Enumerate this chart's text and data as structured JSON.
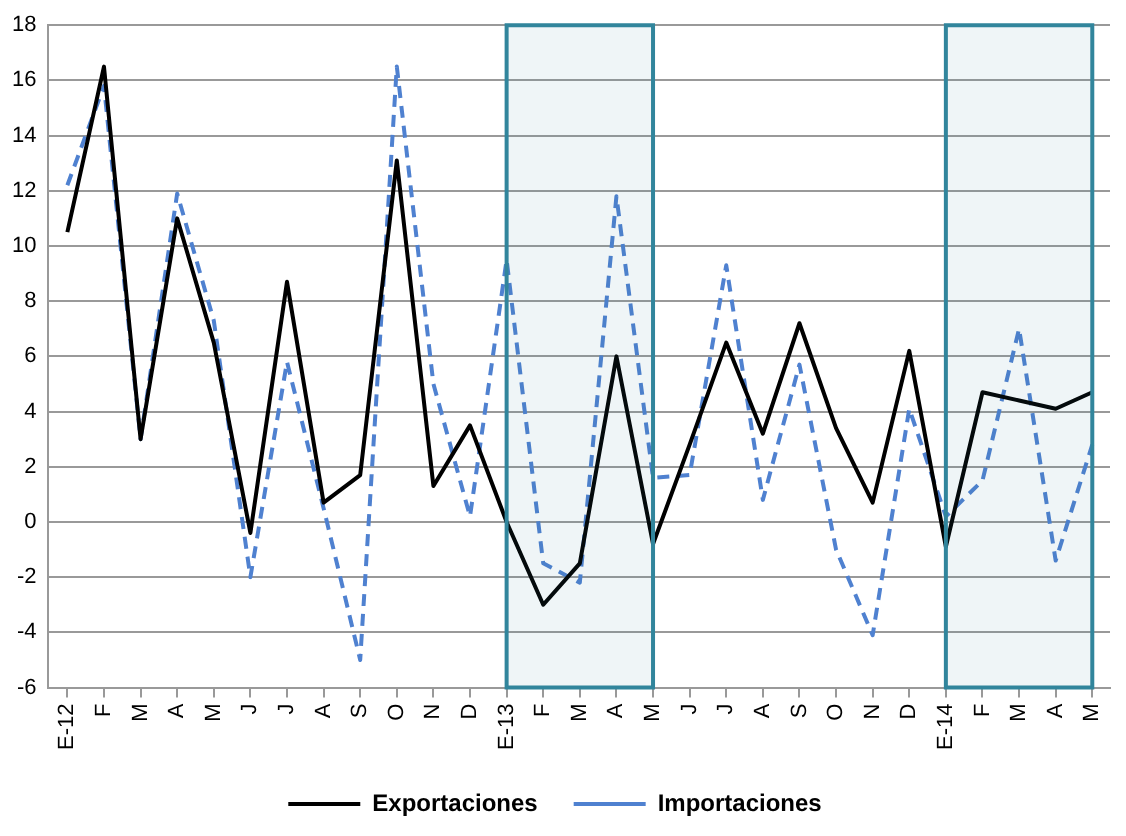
{
  "chart_data": {
    "type": "line",
    "x": [
      "2012-01",
      "2012-02",
      "2012-03",
      "2012-04",
      "2012-05",
      "2012-06",
      "2012-07",
      "2012-08",
      "2012-09",
      "2012-10",
      "2012-11",
      "2012-12",
      "2013-01",
      "2013-02",
      "2013-03",
      "2013-04",
      "2013-05",
      "2013-06",
      "2013-07",
      "2013-08",
      "2013-09",
      "2013-10",
      "2013-11",
      "2013-12",
      "2014-01",
      "2014-02",
      "2014-03",
      "2014-04",
      "2014-05"
    ],
    "xlim": [
      "2011-12-16",
      "2014-05-16"
    ],
    "xticks": [
      {
        "value": "2012-01",
        "label": "E-12"
      },
      {
        "value": "2012-02",
        "label": "F"
      },
      {
        "value": "2012-03",
        "label": "M"
      },
      {
        "value": "2012-04",
        "label": "A"
      },
      {
        "value": "2012-05",
        "label": "M"
      },
      {
        "value": "2012-06",
        "label": "J"
      },
      {
        "value": "2012-07",
        "label": "J"
      },
      {
        "value": "2012-08",
        "label": "A"
      },
      {
        "value": "2012-09",
        "label": "S"
      },
      {
        "value": "2012-10",
        "label": "O"
      },
      {
        "value": "2012-11",
        "label": "N"
      },
      {
        "value": "2012-12",
        "label": "D"
      },
      {
        "value": "2013-01",
        "label": "E-13"
      },
      {
        "value": "2013-02",
        "label": "F"
      },
      {
        "value": "2013-03",
        "label": "M"
      },
      {
        "value": "2013-04",
        "label": "A"
      },
      {
        "value": "2013-05",
        "label": "M"
      },
      {
        "value": "2013-06",
        "label": "J"
      },
      {
        "value": "2013-07",
        "label": "J"
      },
      {
        "value": "2013-08",
        "label": "A"
      },
      {
        "value": "2013-09",
        "label": "S"
      },
      {
        "value": "2013-10",
        "label": "O"
      },
      {
        "value": "2013-11",
        "label": "N"
      },
      {
        "value": "2013-12",
        "label": "D"
      },
      {
        "value": "2014-01",
        "label": "E-14"
      },
      {
        "value": "2014-02",
        "label": "F"
      },
      {
        "value": "2014-03",
        "label": "M"
      },
      {
        "value": "2014-04",
        "label": "A"
      },
      {
        "value": "2014-05",
        "label": "M"
      }
    ],
    "series": [
      {
        "name": "Exportaciones",
        "color": "#000000",
        "line_style": "solid",
        "values": [
          10.5,
          16.5,
          3.0,
          11.0,
          6.5,
          -0.4,
          8.7,
          0.7,
          1.7,
          13.1,
          1.3,
          3.5,
          0.0,
          -3.0,
          -1.5,
          6.0,
          -0.8,
          2.8,
          6.5,
          3.2,
          7.2,
          3.4,
          0.7,
          6.2,
          -0.9,
          4.7,
          4.4,
          4.1,
          4.7
        ]
      },
      {
        "name": "Importaciones",
        "color": "#4f81d0",
        "line_style": "dashed",
        "values": [
          12.2,
          15.8,
          3.0,
          11.9,
          7.3,
          -2.0,
          5.8,
          0.5,
          -5.0,
          16.5,
          5.0,
          0.2,
          9.5,
          -1.5,
          -2.2,
          11.8,
          1.6,
          1.7,
          9.3,
          0.8,
          5.7,
          -1.0,
          -4.1,
          4.1,
          0.2,
          1.5,
          7.0,
          -1.4,
          2.8
        ]
      }
    ],
    "ylim": [
      -6,
      18
    ],
    "yticks": [
      -6,
      -4,
      -2,
      0,
      2,
      4,
      6,
      8,
      10,
      12,
      14,
      16,
      18
    ],
    "grid": "y",
    "legend": "bottom",
    "marker": "none",
    "bands": [
      {
        "axis": "x",
        "from": "2013-01",
        "to": "2013-05",
        "color": "#31859c"
      },
      {
        "axis": "x",
        "from": "2014-01",
        "to": "2014-05",
        "color": "#31859c"
      }
    ]
  }
}
